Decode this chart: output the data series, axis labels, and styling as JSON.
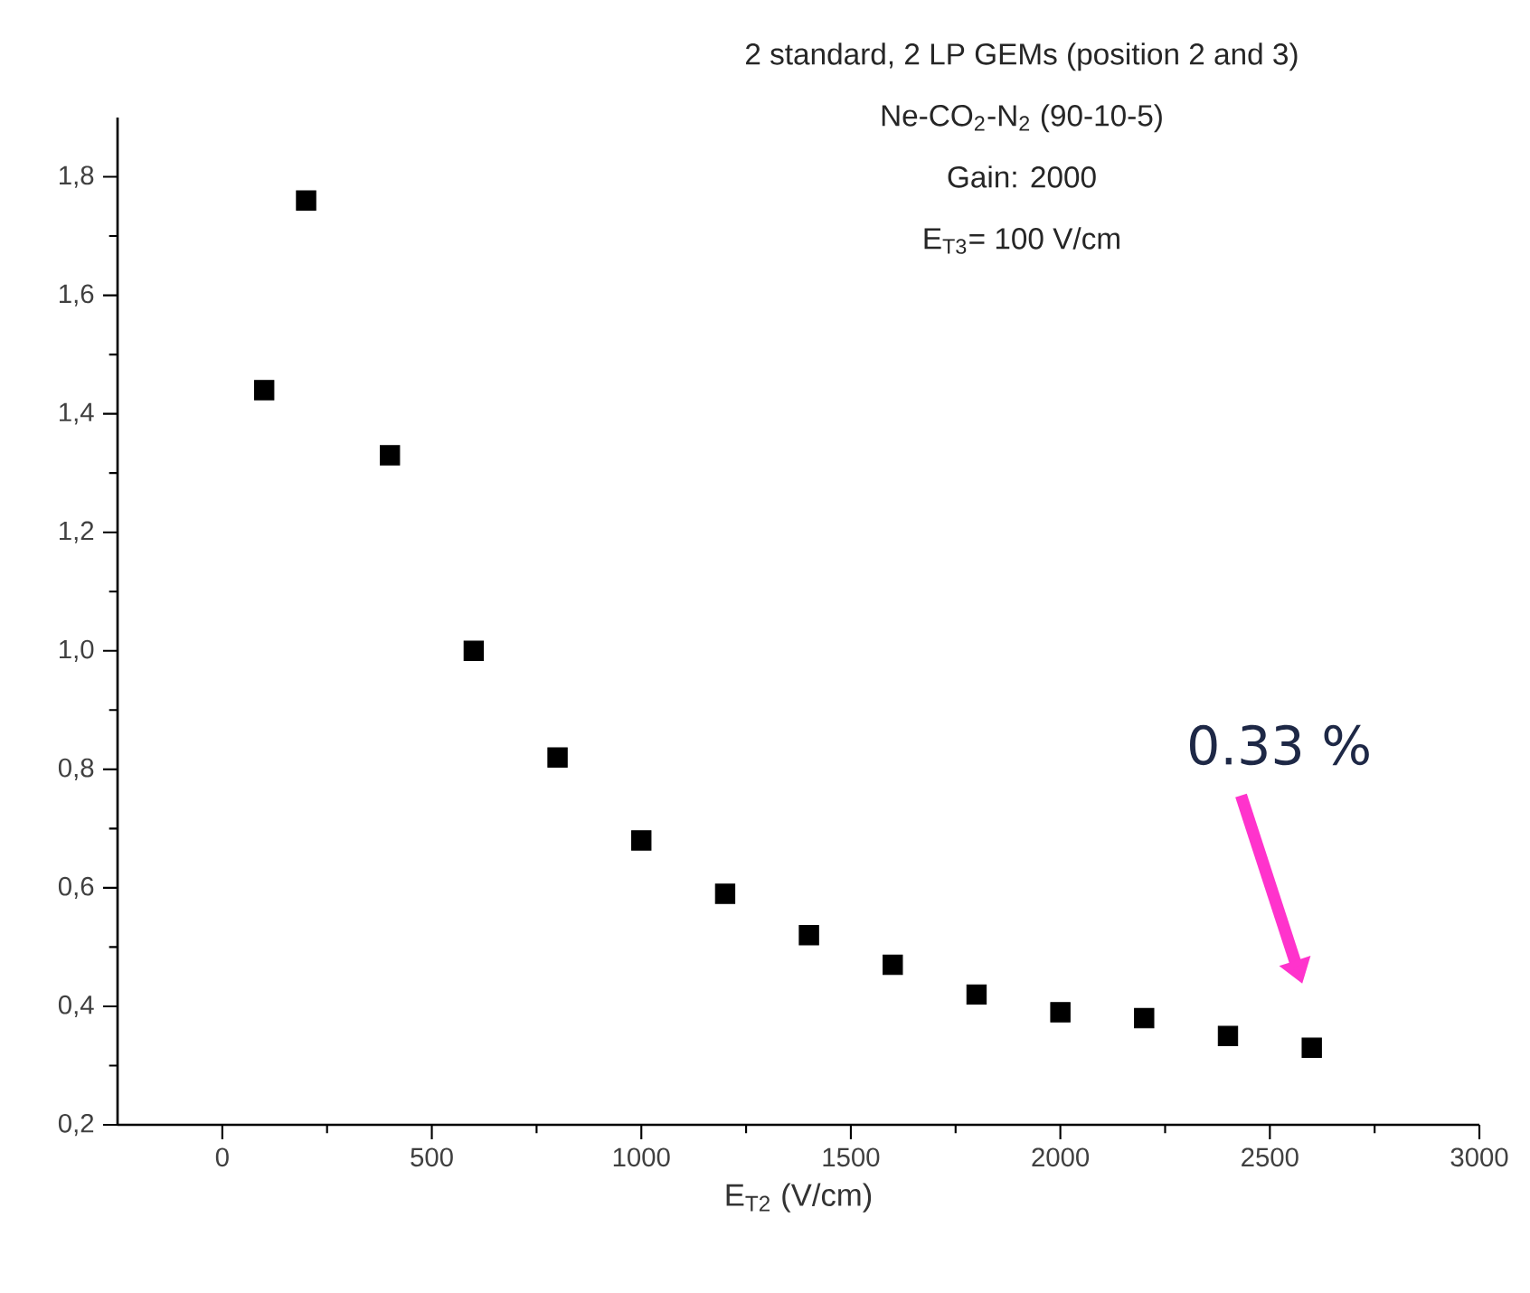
{
  "chart_data": {
    "type": "scatter",
    "title": "2 standard, 2 LP GEMs (position 2 and 3)",
    "annotations": [
      "Ne-CO$_{2}$-N$_{2}$ (90-10-5)",
      "Gain: 2000",
      "E$_{T3}$= 100 V/cm",
      "0.33 %"
    ],
    "xlabel": "E$_{T2}$ (V/cm)",
    "x": [
      100,
      200,
      400,
      600,
      800,
      1000,
      1200,
      1400,
      1600,
      1800,
      2000,
      2200,
      2400,
      2600
    ],
    "series": [
      {
        "color": "#000000",
        "values": [
          1.44,
          1.76,
          1.33,
          1.0,
          0.82,
          0.68,
          0.59,
          0.52,
          0.47,
          0.42,
          0.39,
          0.38,
          0.35,
          0.33
        ]
      }
    ],
    "marker": "square",
    "xlim": [
      -250,
      3000
    ],
    "xticks": [
      0,
      500,
      1000,
      1500,
      2000,
      2500,
      3000
    ],
    "ylim": [
      0.2,
      1.9
    ],
    "yticks": [
      {
        "value": 0.2,
        "label": "0,2"
      },
      {
        "value": 0.4,
        "label": "0,4"
      },
      {
        "value": 0.6,
        "label": "0,6"
      },
      {
        "value": 0.8,
        "label": "0,8"
      },
      {
        "value": 1.0,
        "label": "1,0"
      },
      {
        "value": 1.2,
        "label": "1,2"
      },
      {
        "value": 1.4,
        "label": "1,4"
      },
      {
        "value": 1.6,
        "label": "1,6"
      },
      {
        "value": 1.8,
        "label": "1,8"
      }
    ]
  }
}
